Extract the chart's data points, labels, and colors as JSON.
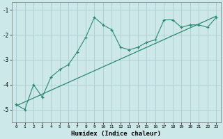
{
  "line1_x": [
    0,
    1,
    2,
    3,
    4,
    5,
    6,
    7,
    8,
    9,
    10,
    11,
    12,
    13,
    14,
    15,
    16,
    17,
    18,
    19,
    20,
    21,
    22,
    23
  ],
  "line1_y": [
    -4.8,
    -5.0,
    -4.0,
    -4.5,
    -3.7,
    -3.4,
    -3.2,
    -2.7,
    -2.1,
    -1.3,
    -1.6,
    -1.8,
    -2.5,
    -2.6,
    -2.5,
    -2.3,
    -2.2,
    -1.4,
    -1.4,
    -1.7,
    -1.6,
    -1.6,
    -1.7,
    -1.3
  ],
  "trend_x": [
    0,
    23
  ],
  "trend_y": [
    -4.85,
    -1.25
  ],
  "line_color": "#2a8a70",
  "bg_color": "#cce8e8",
  "grid_color": "#aacccc",
  "xlabel": "Humidex (Indice chaleur)",
  "ylim": [
    -5.5,
    -0.7
  ],
  "xlim": [
    -0.5,
    23.5
  ],
  "yticks": [
    -5,
    -4,
    -3,
    -2,
    -1
  ],
  "xticks": [
    0,
    1,
    2,
    3,
    4,
    5,
    6,
    7,
    8,
    9,
    10,
    11,
    12,
    13,
    14,
    15,
    16,
    17,
    18,
    19,
    20,
    21,
    22,
    23
  ]
}
